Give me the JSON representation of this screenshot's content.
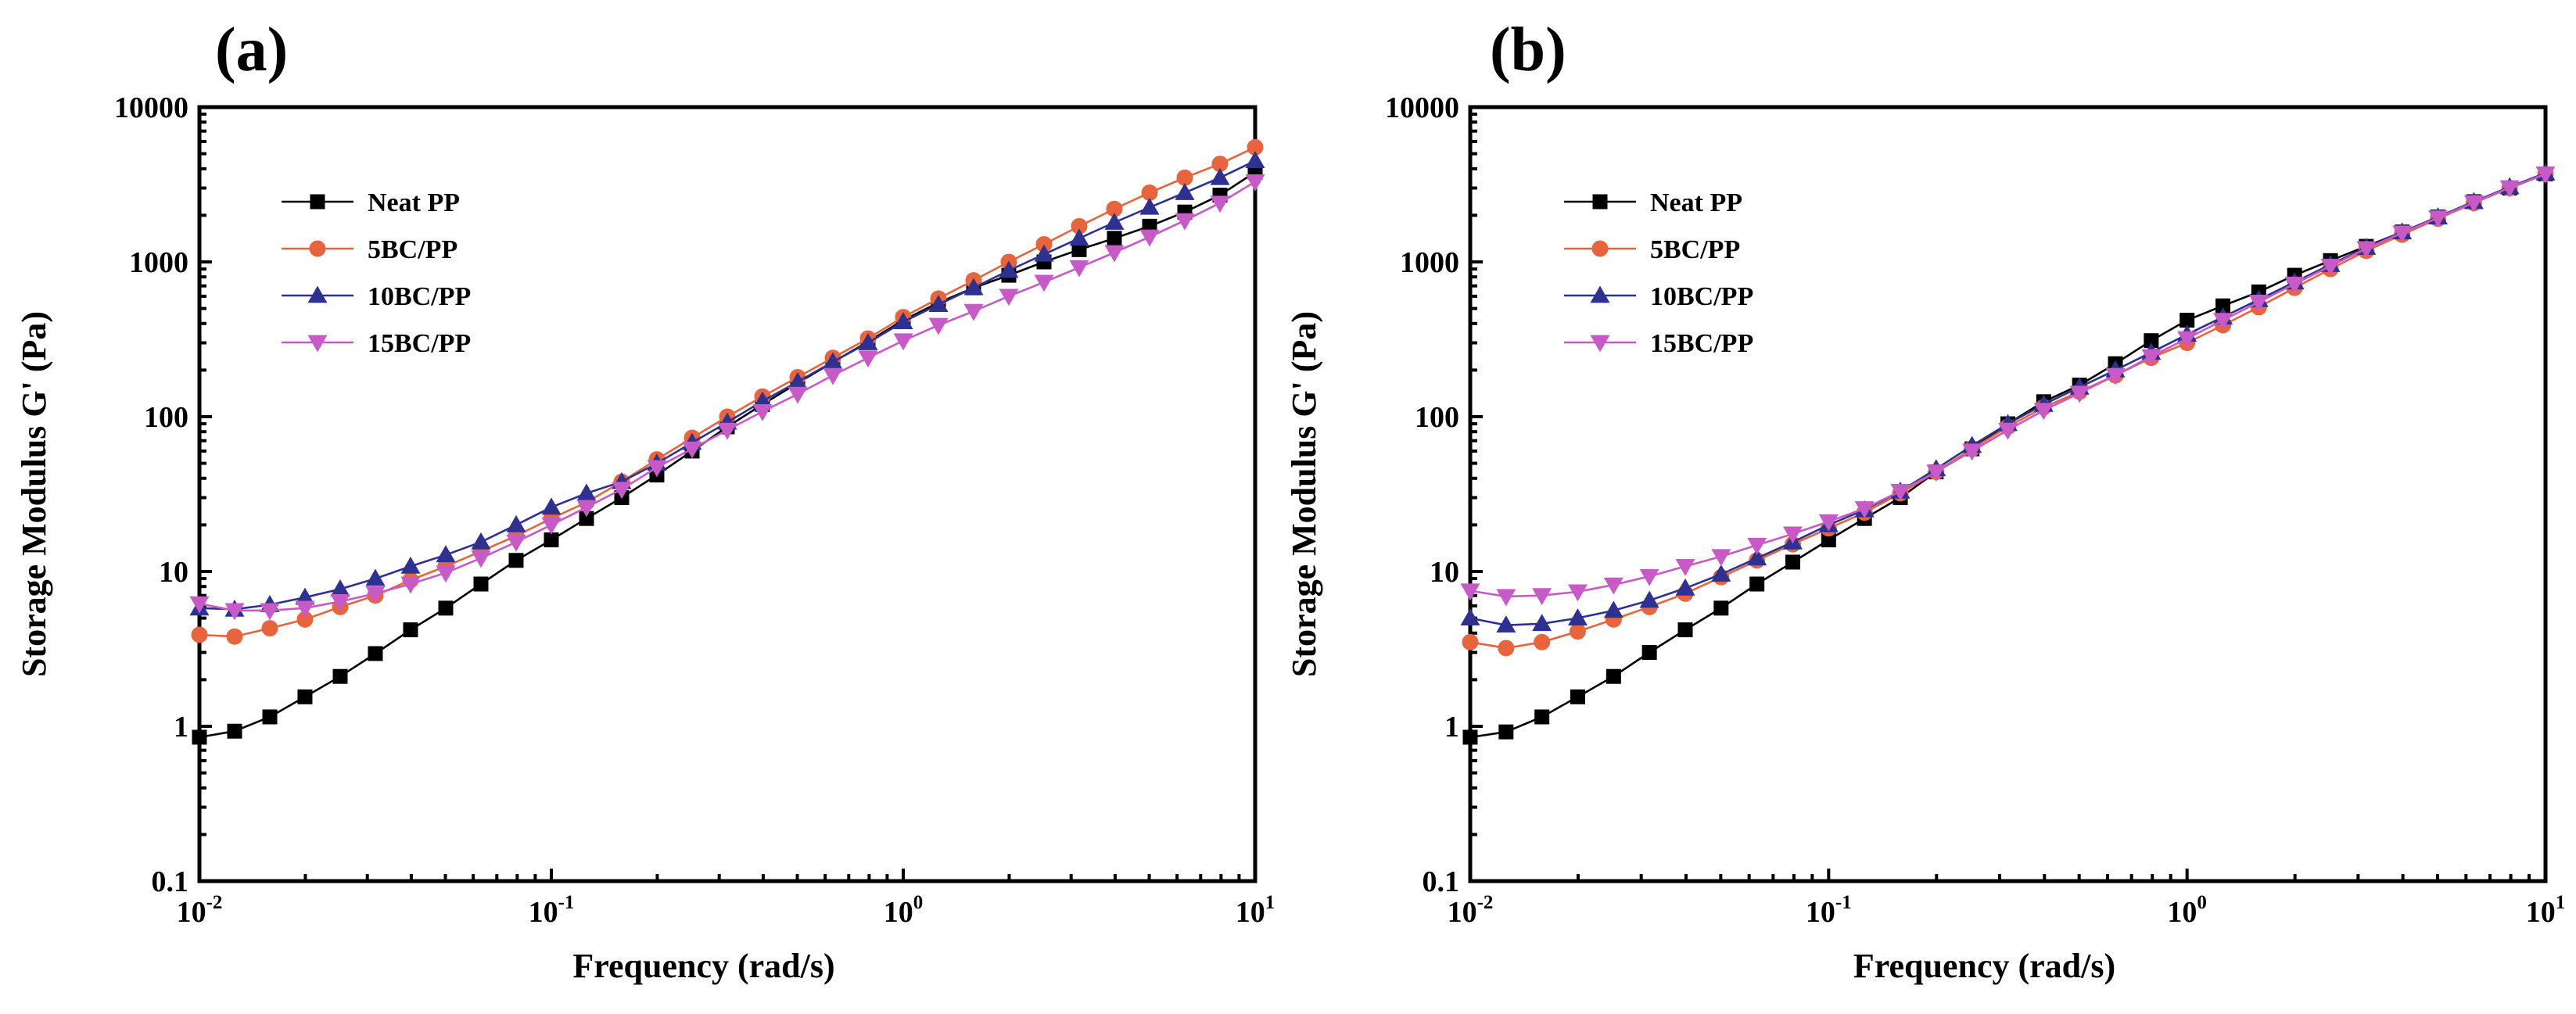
{
  "chart_data": [
    {
      "type": "line",
      "panel_label": "(a)",
      "xlabel": "Frequency (rad/s)",
      "ylabel": "Storage Modulus G' (Pa)",
      "xscale": "log",
      "yscale": "log",
      "xlim": [
        0.01,
        10
      ],
      "ylim": [
        0.1,
        10000
      ],
      "x_ticks": [
        {
          "base": "10",
          "exp": "-2",
          "value": 0.01
        },
        {
          "base": "10",
          "exp": "-1",
          "value": 0.1
        },
        {
          "base": "10",
          "exp": "0",
          "value": 1
        },
        {
          "base": "10",
          "exp": "1",
          "value": 10
        }
      ],
      "y_ticks": [
        {
          "label": "0.1",
          "value": 0.1
        },
        {
          "label": "1",
          "value": 1
        },
        {
          "label": "10",
          "value": 10
        },
        {
          "label": "100",
          "value": 100
        },
        {
          "label": "1000",
          "value": 1000
        },
        {
          "label": "10000",
          "value": 10000
        }
      ],
      "legend_position": "upper-left",
      "x": [
        0.01,
        0.01259,
        0.01585,
        0.01995,
        0.02512,
        0.03162,
        0.03981,
        0.05012,
        0.0631,
        0.07943,
        0.1,
        0.1259,
        0.1585,
        0.1995,
        0.2512,
        0.3162,
        0.3981,
        0.5012,
        0.631,
        0.7943,
        1,
        1.259,
        1.585,
        1.995,
        2.512,
        3.162,
        3.981,
        5.012,
        6.31,
        7.943,
        10
      ],
      "series": [
        {
          "name": "Neat PP",
          "color": "#000000",
          "marker": "square",
          "values": [
            0.85,
            0.93,
            1.15,
            1.55,
            2.1,
            2.95,
            4.2,
            5.8,
            8.3,
            11.8,
            16,
            22,
            30,
            42,
            60,
            86,
            120,
            165,
            225,
            305,
            420,
            545,
            680,
            820,
            1000,
            1200,
            1420,
            1700,
            2100,
            2700,
            3800
          ]
        },
        {
          "name": "5BC/PP",
          "color": "#e8643c",
          "marker": "circle",
          "values": [
            3.9,
            3.8,
            4.3,
            4.9,
            5.9,
            7.0,
            8.8,
            10.8,
            13.5,
            17,
            22,
            28,
            38,
            53,
            73,
            100,
            135,
            180,
            240,
            320,
            440,
            580,
            760,
            1000,
            1300,
            1700,
            2200,
            2800,
            3500,
            4300,
            5500
          ]
        },
        {
          "name": "10BC/PP",
          "color": "#2e3192",
          "marker": "triangle-up",
          "values": [
            5.8,
            5.7,
            6.1,
            6.8,
            7.7,
            9.0,
            10.8,
            12.8,
            15.5,
            20,
            26,
            32,
            38,
            50,
            68,
            92,
            126,
            168,
            226,
            300,
            410,
            530,
            680,
            880,
            1120,
            1420,
            1800,
            2250,
            2800,
            3500,
            4500
          ]
        },
        {
          "name": "15BC/PP",
          "color": "#c85ac8",
          "marker": "triangle-down",
          "values": [
            6.2,
            5.6,
            5.6,
            5.8,
            6.4,
            7.2,
            8.3,
            9.8,
            12.2,
            15.5,
            20,
            26,
            34,
            47,
            62,
            82,
            108,
            140,
            185,
            240,
            310,
            390,
            480,
            600,
            740,
            920,
            1150,
            1450,
            1850,
            2400,
            3300
          ]
        }
      ]
    },
    {
      "type": "line",
      "panel_label": "(b)",
      "xlabel": "Frequency (rad/s)",
      "ylabel": "Storage Modulus G' (Pa)",
      "xscale": "log",
      "yscale": "log",
      "xlim": [
        0.01,
        10
      ],
      "ylim": [
        0.1,
        10000
      ],
      "x_ticks": [
        {
          "base": "10",
          "exp": "-2",
          "value": 0.01
        },
        {
          "base": "10",
          "exp": "-1",
          "value": 0.1
        },
        {
          "base": "10",
          "exp": "0",
          "value": 1
        },
        {
          "base": "10",
          "exp": "1",
          "value": 10
        }
      ],
      "y_ticks": [
        {
          "label": "0.1",
          "value": 0.1
        },
        {
          "label": "1",
          "value": 1
        },
        {
          "label": "10",
          "value": 10
        },
        {
          "label": "100",
          "value": 100
        },
        {
          "label": "1000",
          "value": 1000
        },
        {
          "label": "10000",
          "value": 10000
        }
      ],
      "legend_position": "upper-left",
      "x": [
        0.01,
        0.01259,
        0.01585,
        0.01995,
        0.02512,
        0.03162,
        0.03981,
        0.05012,
        0.0631,
        0.07943,
        0.1,
        0.1259,
        0.1585,
        0.1995,
        0.2512,
        0.3162,
        0.3981,
        0.5012,
        0.631,
        0.7943,
        1,
        1.259,
        1.585,
        1.995,
        2.512,
        3.162,
        3.981,
        5.012,
        6.31,
        7.943,
        10
      ],
      "series": [
        {
          "name": "Neat PP",
          "color": "#000000",
          "marker": "square",
          "values": [
            0.85,
            0.92,
            1.15,
            1.55,
            2.1,
            3.0,
            4.2,
            5.8,
            8.3,
            11.5,
            16,
            22,
            30,
            44,
            62,
            90,
            125,
            160,
            220,
            310,
            420,
            520,
            640,
            820,
            1020,
            1260,
            1560,
            1950,
            2450,
            3000,
            3700
          ]
        },
        {
          "name": "5BC/PP",
          "color": "#e8643c",
          "marker": "circle",
          "values": [
            3.5,
            3.2,
            3.5,
            4.1,
            4.9,
            5.9,
            7.2,
            9.2,
            11.8,
            15,
            19,
            24,
            32,
            44,
            62,
            86,
            115,
            145,
            185,
            240,
            300,
            390,
            510,
            680,
            900,
            1180,
            1500,
            1900,
            2400,
            3000,
            3700
          ]
        },
        {
          "name": "10BC/PP",
          "color": "#2e3192",
          "marker": "triangle-up",
          "values": [
            5.0,
            4.5,
            4.6,
            5.0,
            5.6,
            6.5,
            7.8,
            9.6,
            12.2,
            15.5,
            20,
            25,
            33,
            46,
            65,
            90,
            120,
            155,
            200,
            260,
            340,
            440,
            570,
            740,
            960,
            1240,
            1560,
            1950,
            2450,
            3050,
            3750
          ]
        },
        {
          "name": "15BC/PP",
          "color": "#c85ac8",
          "marker": "triangle-down",
          "values": [
            7.5,
            6.9,
            7.0,
            7.4,
            8.2,
            9.3,
            10.8,
            12.5,
            14.8,
            17.5,
            21,
            25.5,
            33,
            44,
            60,
            82,
            110,
            142,
            185,
            245,
            320,
            420,
            550,
            720,
            940,
            1220,
            1540,
            1930,
            2420,
            3020,
            3700
          ]
        }
      ]
    }
  ]
}
